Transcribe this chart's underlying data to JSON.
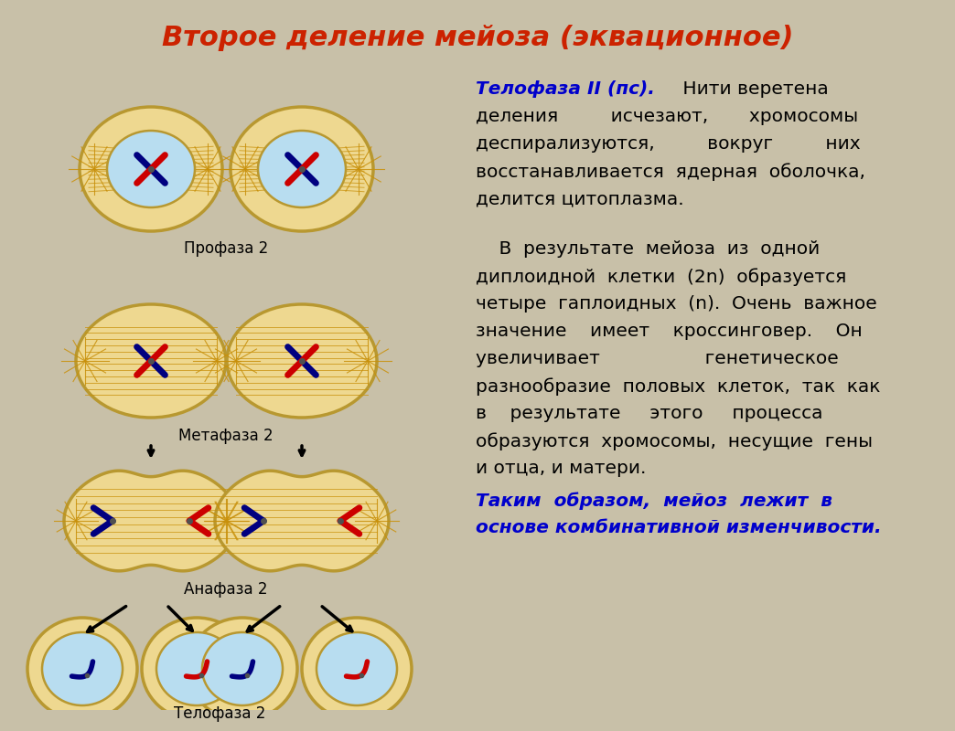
{
  "title": "Второе деление мейоза (эквационное)",
  "title_color": "#CC2200",
  "bg_color": "#C8C0A8",
  "text_bg": "#C8C0A8",
  "cell_outer_color": "#EED890",
  "cell_inner_color": "#B8DDF0",
  "cell_border_color": "#B89830",
  "spindle_color": "#C8900A",
  "chr_blue": "#000080",
  "chr_red": "#CC0000",
  "text_color_black": "#000000",
  "text_color_blue": "#0000CC",
  "label_profaza": "Профаза 2",
  "label_metafaza": "Метафаза 2",
  "label_anafaza": "Анафаза 2",
  "label_telofaza": "Телофаза 2"
}
